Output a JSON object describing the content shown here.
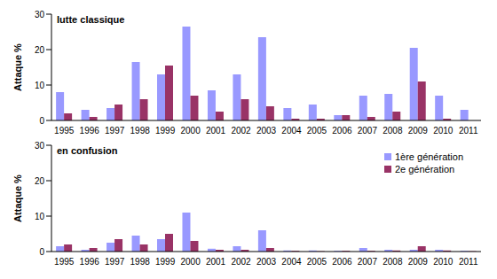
{
  "chart_data": [
    {
      "type": "bar",
      "title": "lutte classique",
      "y_label": "Attaque %",
      "categories": [
        "1995",
        "1996",
        "1997",
        "1998",
        "1999",
        "2000",
        "2001",
        "2002",
        "2003",
        "2004",
        "2005",
        "2006",
        "2007",
        "2008",
        "2009",
        "2010",
        "2011"
      ],
      "series": [
        {
          "name": "1ère génération",
          "color": "#9999ff",
          "values": [
            8,
            3,
            3.5,
            16.5,
            13,
            26.5,
            8.5,
            13,
            23.5,
            3.5,
            4.5,
            1.5,
            7,
            7.5,
            20.5,
            7,
            3
          ]
        },
        {
          "name": "2e génération",
          "color": "#993366",
          "values": [
            2,
            1,
            4.5,
            6,
            15.5,
            7,
            2.5,
            6,
            4,
            0.5,
            0.5,
            1.5,
            1,
            2.5,
            11,
            0.5,
            0
          ]
        }
      ],
      "ylim": [
        0,
        30
      ],
      "yticks": [
        0,
        10,
        20,
        30
      ],
      "grid": false
    },
    {
      "type": "bar",
      "title": "en confusion",
      "y_label": "Attaque %",
      "categories": [
        "1995",
        "1996",
        "1997",
        "1998",
        "1999",
        "2000",
        "2001",
        "2002",
        "2003",
        "2004",
        "2005",
        "2006",
        "2007",
        "2008",
        "2009",
        "2010",
        "2011"
      ],
      "series": [
        {
          "name": "1ère génération",
          "color": "#9999ff",
          "values": [
            1.5,
            0.5,
            2.5,
            4.5,
            3.5,
            11,
            0.8,
            1.5,
            6,
            0.3,
            0.3,
            0.2,
            1,
            0.5,
            0.5,
            0.5,
            0.2
          ]
        },
        {
          "name": "2e génération",
          "color": "#993366",
          "values": [
            2,
            1,
            3.5,
            2,
            5,
            3,
            0.5,
            0.5,
            1,
            0.2,
            0.1,
            0.2,
            0.2,
            0.3,
            1.5,
            0.3,
            0.1
          ]
        }
      ],
      "ylim": [
        0,
        30
      ],
      "yticks": [
        0,
        10,
        20,
        30
      ],
      "grid": false,
      "legend": "top right"
    }
  ]
}
